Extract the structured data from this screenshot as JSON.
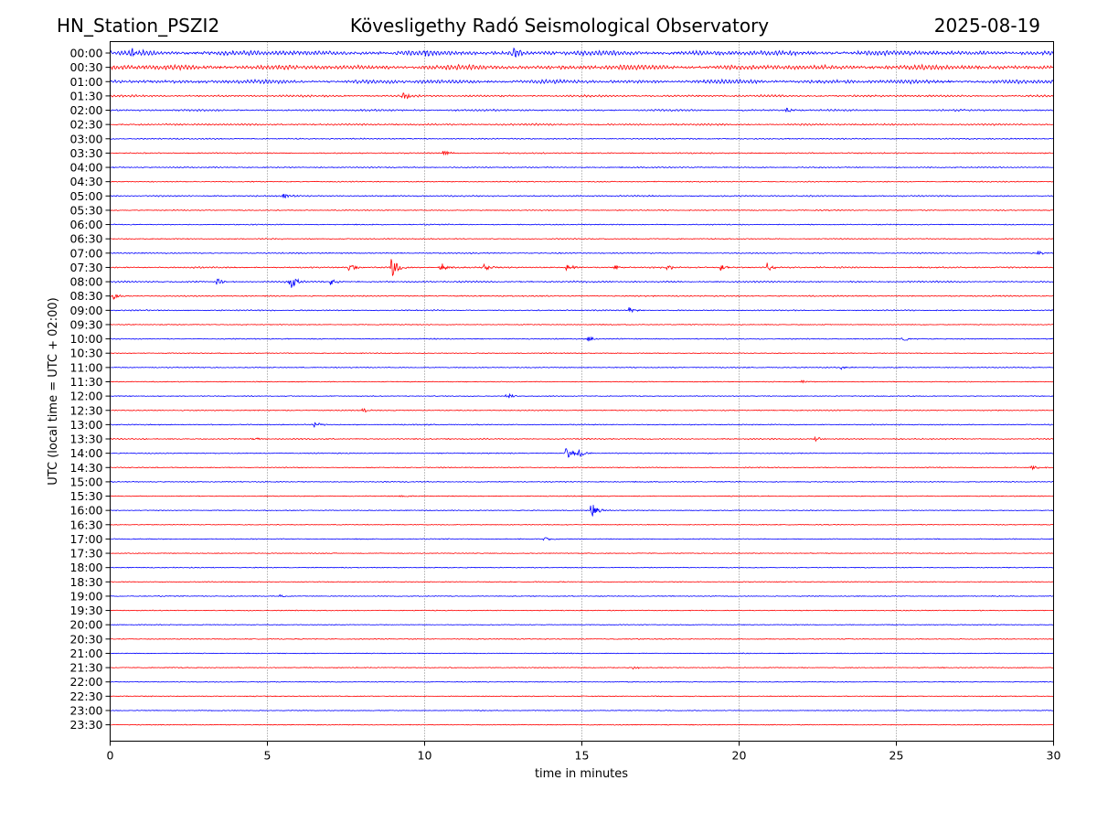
{
  "chart_data": {
    "type": "line",
    "title_left": "HN_Station_PSZI2",
    "title": "Kövesligethy Radó Seismological Observatory",
    "title_right": "2025-08-19",
    "xlabel": "time in minutes",
    "ylabel": "UTC (local time = UTC + 02:00)",
    "xlim": [
      0,
      30
    ],
    "x_ticks": [
      0,
      5,
      10,
      15,
      20,
      25,
      30
    ],
    "x_grid": [
      5,
      10,
      15,
      20,
      25
    ],
    "grid": "vertical-dotted",
    "colors": {
      "odd": "#0000ff",
      "even": "#ff0000"
    },
    "rows": [
      "00:00",
      "00:30",
      "01:00",
      "01:30",
      "02:00",
      "02:30",
      "03:00",
      "03:30",
      "04:00",
      "04:30",
      "05:00",
      "05:30",
      "06:00",
      "06:30",
      "07:00",
      "07:30",
      "08:00",
      "08:30",
      "09:00",
      "09:30",
      "10:00",
      "10:30",
      "11:00",
      "11:30",
      "12:00",
      "12:30",
      "13:00",
      "13:30",
      "14:00",
      "14:30",
      "15:00",
      "15:30",
      "16:00",
      "16:30",
      "17:00",
      "17:30",
      "18:00",
      "18:30",
      "19:00",
      "19:30",
      "20:00",
      "20:30",
      "21:00",
      "21:30",
      "22:00",
      "22:30",
      "23:00",
      "23:30"
    ],
    "row_activity": [
      1.0,
      1.0,
      0.8,
      0.4,
      0.35,
      0.35,
      0.2,
      0.2,
      0.2,
      0.15,
      0.25,
      0.15,
      0.15,
      0.15,
      0.2,
      0.25,
      0.3,
      0.2,
      0.2,
      0.1,
      0.15,
      0.1,
      0.15,
      0.1,
      0.1,
      0.15,
      0.15,
      0.2,
      0.15,
      0.15,
      0.15,
      0.1,
      0.1,
      0.08,
      0.1,
      0.08,
      0.1,
      0.1,
      0.1,
      0.1,
      0.08,
      0.1,
      0.08,
      0.1,
      0.08,
      0.1,
      0.08,
      0.08
    ],
    "events": [
      {
        "row": 0,
        "t": 12.8,
        "amp": 8
      },
      {
        "row": 0,
        "t": 0.7,
        "amp": 5
      },
      {
        "row": 0,
        "t": 10.0,
        "amp": 5
      },
      {
        "row": 3,
        "t": 9.3,
        "amp": 5
      },
      {
        "row": 4,
        "t": 21.5,
        "amp": 3
      },
      {
        "row": 7,
        "t": 10.6,
        "amp": 3
      },
      {
        "row": 10,
        "t": 5.5,
        "amp": 3
      },
      {
        "row": 14,
        "t": 29.5,
        "amp": 3
      },
      {
        "row": 15,
        "t": 8.95,
        "amp": 14
      },
      {
        "row": 15,
        "t": 7.6,
        "amp": 6
      },
      {
        "row": 15,
        "t": 10.5,
        "amp": 7
      },
      {
        "row": 15,
        "t": 11.9,
        "amp": 4
      },
      {
        "row": 15,
        "t": 14.5,
        "amp": 5
      },
      {
        "row": 15,
        "t": 16.0,
        "amp": 4
      },
      {
        "row": 15,
        "t": 17.7,
        "amp": 3
      },
      {
        "row": 15,
        "t": 19.4,
        "amp": 4
      },
      {
        "row": 15,
        "t": 20.9,
        "amp": 5
      },
      {
        "row": 16,
        "t": 5.7,
        "amp": 12
      },
      {
        "row": 16,
        "t": 3.4,
        "amp": 4
      },
      {
        "row": 16,
        "t": 7.0,
        "amp": 4
      },
      {
        "row": 17,
        "t": 0.1,
        "amp": 4
      },
      {
        "row": 18,
        "t": 16.5,
        "amp": 4
      },
      {
        "row": 20,
        "t": 15.2,
        "amp": 3
      },
      {
        "row": 20,
        "t": 25.2,
        "amp": 3
      },
      {
        "row": 22,
        "t": 23.2,
        "amp": 3
      },
      {
        "row": 23,
        "t": 22.0,
        "amp": 2
      },
      {
        "row": 24,
        "t": 12.6,
        "amp": 4
      },
      {
        "row": 25,
        "t": 8.0,
        "amp": 3
      },
      {
        "row": 26,
        "t": 6.5,
        "amp": 3
      },
      {
        "row": 27,
        "t": 4.5,
        "amp": 3
      },
      {
        "row": 27,
        "t": 22.4,
        "amp": 4
      },
      {
        "row": 28,
        "t": 14.5,
        "amp": 7
      },
      {
        "row": 28,
        "t": 14.9,
        "amp": 5
      },
      {
        "row": 29,
        "t": 29.3,
        "amp": 3
      },
      {
        "row": 31,
        "t": 9.2,
        "amp": 2
      },
      {
        "row": 32,
        "t": 15.3,
        "amp": 9
      },
      {
        "row": 34,
        "t": 13.8,
        "amp": 3
      },
      {
        "row": 38,
        "t": 5.4,
        "amp": 2
      },
      {
        "row": 43,
        "t": 16.6,
        "amp": 2
      }
    ]
  }
}
